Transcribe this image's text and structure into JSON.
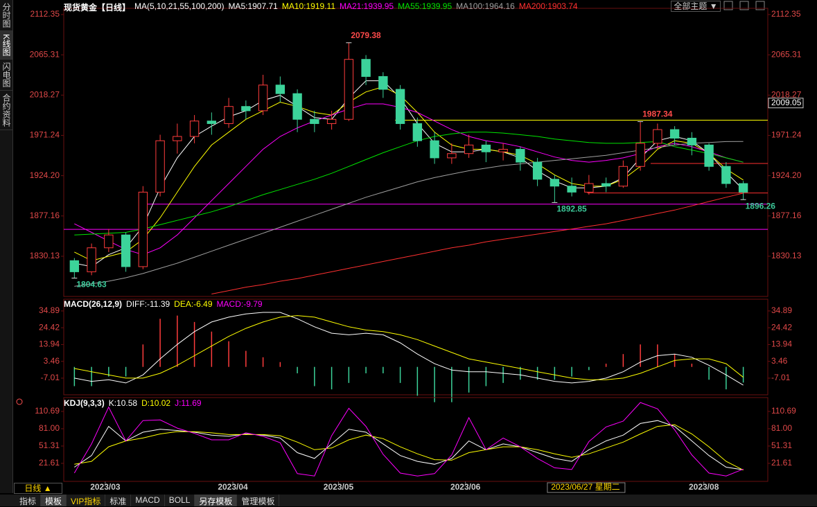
{
  "ui": {
    "side_tabs": [
      {
        "label": "分时图",
        "active": false
      },
      {
        "label": "K线图",
        "active": true
      },
      {
        "label": "闪电图",
        "active": false
      },
      {
        "label": "合约资料",
        "active": false
      }
    ],
    "period": "日线 ▲",
    "theme": "全部主题 ▼",
    "tabs": [
      {
        "label": "指标",
        "active": false,
        "color": "#dddddd"
      },
      {
        "label": "模板",
        "active": true,
        "color": "#ffffff"
      },
      {
        "label": "VIP指标",
        "active": false,
        "color": "#ffd700"
      },
      {
        "label": "标准",
        "active": false,
        "color": "#dddddd"
      },
      {
        "label": "MACD",
        "active": false,
        "color": "#dddddd"
      },
      {
        "label": "BOLL",
        "active": false,
        "color": "#dddddd"
      },
      {
        "label": "另存模板",
        "active": true,
        "color": "#ffffff"
      },
      {
        "label": "管理模板",
        "active": false,
        "color": "#dddddd"
      }
    ]
  },
  "chart_data": [
    {
      "type": "candlestick",
      "title": "现货黄金【日线】",
      "subtitle": "MA(5,10,21,55,100,200)",
      "up_color": "#ff3c3c",
      "down_color": "#3cd39a",
      "open": [
        1825,
        1812,
        1840,
        1855,
        1818,
        1905,
        1965,
        1970,
        1988,
        1985,
        2005,
        2000,
        2030,
        2020,
        1990,
        1985,
        1990,
        2060,
        2040,
        2025,
        1985,
        1965,
        1945,
        1950,
        1960,
        1952,
        1955,
        1940,
        1920,
        1912,
        1905,
        1915,
        1912,
        1935,
        1962,
        1978,
        1968,
        1960,
        1935,
        1915
      ],
      "high": [
        1828,
        1845,
        1862,
        1858,
        1912,
        1972,
        1985,
        1995,
        1998,
        2015,
        2012,
        2042,
        2040,
        2025,
        2000,
        2000,
        2079.38,
        2065,
        2045,
        2030,
        1992,
        1975,
        1962,
        1972,
        1965,
        1962,
        1958,
        1945,
        1925,
        1922,
        1925,
        1922,
        1942,
        1987.34,
        1985,
        1982,
        1975,
        1962,
        1940,
        1918
      ],
      "low": [
        1804.63,
        1808,
        1835,
        1812,
        1815,
        1900,
        1950,
        1962,
        1972,
        1980,
        1990,
        1995,
        2010,
        1975,
        1975,
        1978,
        1988,
        2030,
        2015,
        1978,
        1958,
        1938,
        1938,
        1945,
        1940,
        1942,
        1930,
        1912,
        1892.85,
        1900,
        1902,
        1905,
        1910,
        1930,
        1955,
        1960,
        1948,
        1930,
        1910,
        1896.26
      ],
      "close": [
        1812,
        1840,
        1855,
        1818,
        1905,
        1965,
        1970,
        1988,
        1985,
        2005,
        2000,
        2030,
        2020,
        1990,
        1985,
        1990,
        2060,
        2040,
        2025,
        1985,
        1965,
        1945,
        1950,
        1960,
        1952,
        1955,
        1940,
        1920,
        1912,
        1905,
        1915,
        1912,
        1935,
        1962,
        1978,
        1968,
        1960,
        1935,
        1915,
        1905
      ],
      "series": [
        {
          "name": "MA5:1907.71",
          "color": "#ffffff",
          "values": [
            1822,
            1818,
            1832,
            1840,
            1865,
            1910,
            1945,
            1970,
            1982,
            1993,
            2000,
            2012,
            2018,
            2005,
            1992,
            1990,
            2015,
            2035,
            2035,
            2015,
            1985,
            1962,
            1952,
            1952,
            1955,
            1952,
            1945,
            1930,
            1918,
            1910,
            1910,
            1912,
            1922,
            1945,
            1965,
            1970,
            1965,
            1950,
            1928,
            1907.71
          ]
        },
        {
          "name": "MA10:1919.11",
          "color": "#ffff00",
          "values": [
            1835,
            1825,
            1830,
            1835,
            1850,
            1875,
            1905,
            1935,
            1960,
            1975,
            1990,
            2000,
            2010,
            2005,
            1998,
            1995,
            2010,
            2022,
            2028,
            2018,
            1998,
            1975,
            1960,
            1955,
            1955,
            1952,
            1948,
            1938,
            1925,
            1915,
            1912,
            1912,
            1920,
            1935,
            1955,
            1965,
            1962,
            1950,
            1932,
            1919.11
          ]
        },
        {
          "name": "MA21:1939.95",
          "color": "#ff00ff",
          "values": [
            1868,
            1858,
            1848,
            1838,
            1832,
            1840,
            1855,
            1875,
            1895,
            1915,
            1935,
            1955,
            1970,
            1980,
            1988,
            1995,
            2002,
            2008,
            2008,
            2004,
            1998,
            1988,
            1978,
            1970,
            1965,
            1962,
            1958,
            1952,
            1946,
            1942,
            1940,
            1942,
            1945,
            1950,
            1958,
            1962,
            1958,
            1952,
            1945,
            1939.95
          ]
        },
        {
          "name": "MA55:1939.95",
          "color": "#00e600",
          "values": [
            1855,
            1856,
            1857,
            1858,
            1862,
            1867,
            1872,
            1877,
            1882,
            1888,
            1895,
            1902,
            1908,
            1914,
            1920,
            1927,
            1935,
            1943,
            1951,
            1958,
            1965,
            1970,
            1973,
            1975,
            1975,
            1974,
            1972,
            1970,
            1967,
            1965,
            1963,
            1962,
            1962,
            1963,
            1964,
            1958,
            1954,
            1950,
            1945,
            1939.95
          ]
        },
        {
          "name": "MA100:1964.16",
          "color": "#a0a0a0",
          "values": [
            1795,
            1798,
            1801,
            1805,
            1810,
            1816,
            1822,
            1829,
            1836,
            1843,
            1850,
            1857,
            1864,
            1871,
            1878,
            1885,
            1892,
            1899,
            1905,
            1911,
            1917,
            1922,
            1926,
            1930,
            1933,
            1936,
            1938,
            1940,
            1942,
            1944,
            1946,
            1948,
            1951,
            1954,
            1957,
            1960,
            1962,
            1963,
            1964,
            1964.16
          ]
        },
        {
          "name": "MA200:1903.74",
          "color": "#ff3030",
          "values": [
            null,
            null,
            null,
            null,
            null,
            null,
            null,
            null,
            1786,
            1790,
            1794,
            1797,
            1801,
            1804,
            1808,
            1812,
            1816,
            1820,
            1824,
            1828,
            1832,
            1836,
            1840,
            1843,
            1847,
            1850,
            1853,
            1856,
            1859,
            1862,
            1865,
            1868,
            1872,
            1876,
            1880,
            1884,
            1889,
            1894,
            1899,
            1903.74
          ]
        }
      ],
      "xlim": [
        -0.62,
        40.43
      ],
      "ylim": [
        1783.2,
        2119.6
      ],
      "yticks": [
        2112.35,
        2065.31,
        2018.27,
        1971.24,
        {
          "value": 1924.2,
          "label": "1924.20"
        },
        1877.16,
        1830.13
      ],
      "xticks": [
        {
          "value": 1.8,
          "label": "2023/03"
        },
        {
          "value": 9.24,
          "label": "2023/04"
        },
        {
          "value": 15.4,
          "label": "2023/05"
        },
        {
          "value": 22.8,
          "label": "2023/06"
        },
        {
          "value": 36.7,
          "label": "2023/08"
        }
      ],
      "annotations": [
        {
          "x": 16,
          "y": 2079.38,
          "position": "above",
          "color": "#ff4a4a"
        },
        {
          "x": 33,
          "y": 1987.34,
          "position": "above",
          "color": "#ff4a4a"
        },
        {
          "x": 28,
          "y": 1892.85,
          "position": "below",
          "color": "#3cc99a"
        },
        {
          "x": 39,
          "y": 1896.26,
          "position": "below",
          "color": "#3cc99a"
        },
        {
          "x": 0,
          "y": 1804.63,
          "position": "below",
          "color": "#3cc99a"
        }
      ],
      "levels": [
        {
          "y": 1989,
          "from": 18.7,
          "color": "#ffff00"
        },
        {
          "y": 1938.5,
          "from": 33.6,
          "color": "#ff3030"
        },
        {
          "y": 1904,
          "from": 29.9,
          "color": "#ff3030"
        },
        {
          "y": 1891,
          "from": 4.0,
          "color": "#ff00ff"
        },
        {
          "y": 1861.5,
          "from": -0.62,
          "color": "#ff00ff"
        }
      ],
      "cursor": {
        "label": "2023/06/27 星期二",
        "x": 29.8,
        "price": 2009.05
      }
    },
    {
      "type": "macd",
      "title": "MACD(26,12,9)",
      "up_color": "#ff3c3c",
      "down_color": "#3cd39a",
      "series": [
        {
          "name": "DIFF:-11.39",
          "color": "#ffffff",
          "kind": "line",
          "values": [
            -7,
            -9,
            -8,
            -10,
            -5,
            5,
            14,
            22,
            28,
            31,
            33,
            34,
            34,
            30,
            25,
            21,
            20,
            21,
            20,
            15,
            8,
            2,
            -2,
            -3,
            -3,
            -4,
            -5,
            -7,
            -9,
            -10,
            -9,
            -7,
            -3,
            3,
            7,
            8,
            6,
            1,
            -5,
            -11.39
          ]
        },
        {
          "name": "DEA:-6.49",
          "color": "#ffff00",
          "kind": "line",
          "values": [
            -1,
            -3,
            -5,
            -7,
            -7,
            -4,
            1,
            7,
            13,
            19,
            24,
            28,
            31,
            32,
            31,
            28,
            25,
            23,
            22,
            20,
            17,
            13,
            9,
            5,
            3,
            1,
            -1,
            -3,
            -5,
            -7,
            -8,
            -8,
            -7,
            -4,
            0,
            4,
            5,
            5,
            2,
            -6.49
          ]
        },
        {
          "name": "MACD:-9.79",
          "color": "#ff00ff",
          "kind": "bar",
          "values": [
            -12,
            -12,
            -6,
            -6,
            14,
            30,
            32,
            28,
            22,
            16,
            10,
            6,
            3,
            -4,
            -12,
            -14,
            -10,
            -4,
            -4,
            -10,
            -18,
            -22,
            -22,
            -16,
            -12,
            -10,
            -8,
            -8,
            -8,
            -6,
            -2,
            2,
            8,
            14,
            14,
            8,
            2,
            -8,
            -14,
            -9.79
          ]
        }
      ],
      "ylim": [
        -17.4,
        42.2
      ],
      "yticks": [
        34.89,
        24.42,
        13.94,
        3.46,
        -7.01
      ]
    },
    {
      "type": "kdj",
      "title": "KDJ(9,3,3)",
      "series": [
        {
          "name": "K:10.58",
          "color": "#ffffff",
          "kind": "line",
          "values": [
            15,
            35,
            85,
            60,
            75,
            80,
            78,
            75,
            70,
            68,
            72,
            70,
            65,
            40,
            30,
            55,
            80,
            75,
            55,
            35,
            25,
            20,
            30,
            60,
            45,
            55,
            50,
            40,
            30,
            25,
            45,
            60,
            70,
            90,
            95,
            85,
            60,
            35,
            15,
            10.58
          ]
        },
        {
          "name": "D:10.02",
          "color": "#ffff00",
          "kind": "line",
          "values": [
            20,
            25,
            50,
            60,
            65,
            72,
            76,
            76,
            74,
            71,
            71,
            71,
            69,
            58,
            45,
            48,
            62,
            70,
            64,
            50,
            38,
            28,
            27,
            40,
            45,
            50,
            50,
            45,
            38,
            32,
            38,
            48,
            58,
            72,
            85,
            88,
            72,
            50,
            25,
            10.02
          ]
        },
        {
          "name": "J:11.69",
          "color": "#ff00ff",
          "kind": "line",
          "values": [
            5,
            55,
            118,
            60,
            95,
            96,
            82,
            73,
            62,
            62,
            74,
            68,
            57,
            4,
            0,
            69,
            116,
            85,
            37,
            5,
            0,
            4,
            36,
            100,
            45,
            65,
            50,
            30,
            14,
            11,
            59,
            84,
            94,
            126,
            115,
            79,
            36,
            5,
            0,
            11.69
          ]
        }
      ],
      "ylim": [
        -9.3,
        134.4
      ],
      "yticks": [
        110.69,
        {
          "value": 81,
          "label": "81.00"
        },
        51.31,
        21.61
      ]
    }
  ]
}
